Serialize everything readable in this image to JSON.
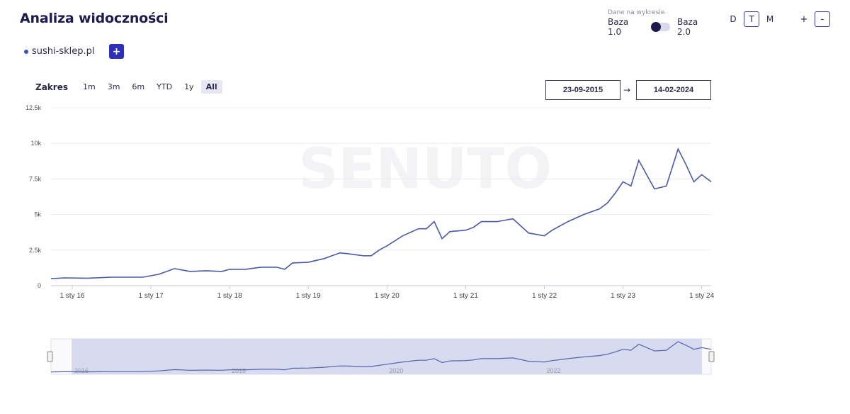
{
  "header": {
    "title": "Analiza widoczności"
  },
  "data_toggle": {
    "caption": "Dane na wykresie",
    "left_label": "Baza 1.0",
    "right_label": "Baza 2.0"
  },
  "period_buttons": [
    {
      "label": "D",
      "active": false
    },
    {
      "label": "T",
      "active": true
    },
    {
      "label": "M",
      "active": false
    }
  ],
  "zoom_buttons": {
    "plus": "+",
    "minus": "-"
  },
  "domains": [
    {
      "label": "sushi-sklep.pl",
      "color": "#3a50c9"
    }
  ],
  "add_button": "+",
  "range_selector": {
    "label": "Zakres",
    "buttons": [
      {
        "label": "1m",
        "active": false
      },
      {
        "label": "3m",
        "active": false
      },
      {
        "label": "6m",
        "active": false
      },
      {
        "label": "YTD",
        "active": false
      },
      {
        "label": "1y",
        "active": false
      },
      {
        "label": "All",
        "active": true
      }
    ]
  },
  "date_range": {
    "from": "23-09-2015",
    "to": "14-02-2024",
    "arrow": "→"
  },
  "watermark": "SENUTO",
  "chart_data": {
    "type": "line",
    "title": "Analiza widoczności",
    "series": [
      {
        "name": "sushi-sklep.pl",
        "color": "#4a59a8",
        "x": [
          2015.73,
          2015.9,
          2016.2,
          2016.5,
          2016.9,
          2017.1,
          2017.3,
          2017.5,
          2017.7,
          2017.9,
          2018.0,
          2018.2,
          2018.4,
          2018.6,
          2018.7,
          2018.8,
          2019.0,
          2019.2,
          2019.4,
          2019.5,
          2019.7,
          2019.8,
          2019.9,
          2020.0,
          2020.2,
          2020.4,
          2020.5,
          2020.6,
          2020.7,
          2020.8,
          2021.0,
          2021.1,
          2021.2,
          2021.4,
          2021.6,
          2021.8,
          2022.0,
          2022.1,
          2022.3,
          2022.5,
          2022.7,
          2022.8,
          2022.9,
          2023.0,
          2023.1,
          2023.2,
          2023.4,
          2023.55,
          2023.7,
          2023.8,
          2023.9,
          2024.0,
          2024.12
        ],
        "y": [
          500,
          550,
          530,
          600,
          600,
          800,
          1200,
          1000,
          1050,
          1000,
          1150,
          1150,
          1300,
          1300,
          1150,
          1600,
          1650,
          1900,
          2300,
          2250,
          2100,
          2100,
          2500,
          2800,
          3500,
          4000,
          4000,
          4500,
          3300,
          3800,
          3900,
          4100,
          4500,
          4500,
          4700,
          3700,
          3500,
          3900,
          4500,
          5000,
          5400,
          5800,
          6500,
          7300,
          7000,
          8800,
          6800,
          7000,
          9600,
          8500,
          7300,
          7800,
          7300
        ]
      },
      {
        "name": "navigator",
        "values": "same"
      }
    ],
    "categories": [
      "1 sty 16",
      "1 sty 17",
      "1 sty 18",
      "1 sty 19",
      "1 sty 20",
      "1 sty 21",
      "1 sty 22",
      "1 sty 23",
      "1 sty 24"
    ],
    "y_ticks": [
      "0",
      "2.5k",
      "5k",
      "7.5k",
      "10k",
      "12.5k"
    ],
    "ylim": [
      0,
      12500
    ],
    "xlim": [
      2015.73,
      2024.12
    ],
    "navigator": {
      "labels": [
        "2016",
        "2018",
        "2020",
        "2022"
      ]
    },
    "xlabel": "",
    "ylabel": "",
    "grid": true,
    "legend": "none"
  }
}
